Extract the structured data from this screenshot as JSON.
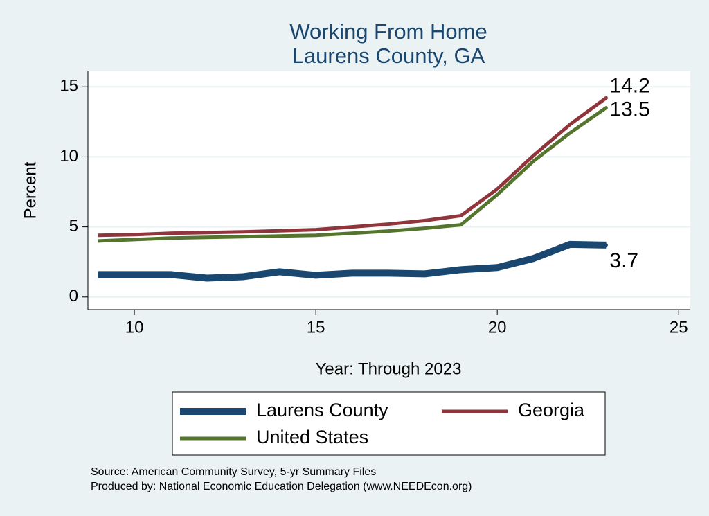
{
  "chart_data": {
    "type": "line",
    "title": "Working From Home",
    "subtitle": "Laurens County, GA",
    "x_label": "Year: Through 2023",
    "y_label": "Percent",
    "x": [
      9,
      10,
      11,
      12,
      13,
      14,
      15,
      16,
      17,
      18,
      19,
      20,
      21,
      22,
      23
    ],
    "series": [
      {
        "name": "Laurens County",
        "color": "#1a476f",
        "values": [
          1.6,
          1.6,
          1.6,
          1.35,
          1.45,
          1.8,
          1.55,
          1.7,
          1.7,
          1.65,
          1.95,
          2.1,
          2.75,
          3.75,
          3.7
        ]
      },
      {
        "name": "Georgia",
        "color": "#90353b",
        "values": [
          4.4,
          4.45,
          4.55,
          4.6,
          4.65,
          4.72,
          4.8,
          5.0,
          5.2,
          5.45,
          5.8,
          7.7,
          10.1,
          12.3,
          14.2
        ]
      },
      {
        "name": "United States",
        "color": "#55752f",
        "values": [
          4.0,
          4.1,
          4.2,
          4.25,
          4.3,
          4.35,
          4.4,
          4.55,
          4.7,
          4.9,
          5.15,
          7.3,
          9.7,
          11.7,
          13.5
        ]
      }
    ],
    "xlim": [
      8.72,
      25.32
    ],
    "xticks": [
      10,
      15,
      20,
      25
    ],
    "ylim": [
      -0.9,
      16.1
    ],
    "yticks": [
      0,
      5,
      10,
      15
    ],
    "grid": true,
    "legend": "bottom",
    "notes": [
      "Source: American Community Survey, 5-yr Summary Files",
      "Produced by: National Economic Education Delegation (www.NEEDEcon.org)"
    ]
  }
}
